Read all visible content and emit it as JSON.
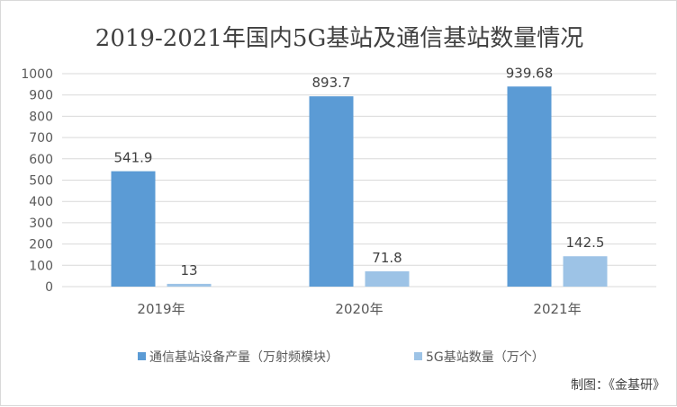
{
  "chart_data": {
    "type": "bar",
    "title": "2019-2021年国内5G基站及通信基站数量情况",
    "categories": [
      "2019年",
      "2020年",
      "2021年"
    ],
    "series": [
      {
        "name": "通信基站设备产量（万射频模块）",
        "values": [
          541.9,
          893.7,
          939.68
        ],
        "labels": [
          "541.9",
          "893.7",
          "939.68"
        ],
        "color": "#5b9bd5"
      },
      {
        "name": "5G基站数量（万个）",
        "values": [
          13,
          71.8,
          142.5
        ],
        "labels": [
          "13",
          "71.8",
          "142.5"
        ],
        "color": "#9dc3e6"
      }
    ],
    "ylim": [
      0,
      1000
    ],
    "yticks": [
      "0",
      "100",
      "200",
      "300",
      "400",
      "500",
      "600",
      "700",
      "800",
      "900",
      "1000"
    ],
    "grid": true,
    "legend_position": "bottom"
  },
  "source": "制图：《金基研》"
}
